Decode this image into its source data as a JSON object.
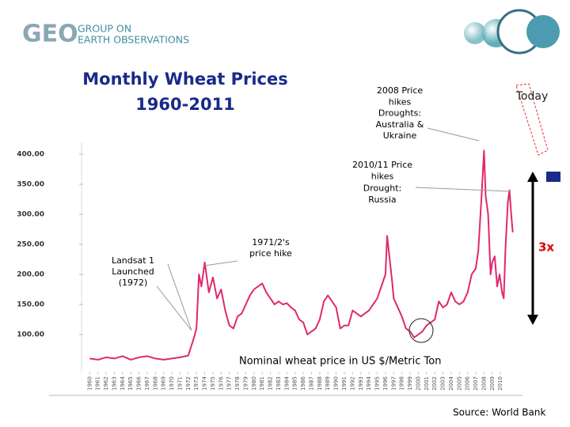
{
  "logo": {
    "mark": "GEO",
    "lines": [
      "GROUP ON",
      "EARTH OBSERVATIONS"
    ]
  },
  "chart_data": {
    "type": "line",
    "title": [
      "Monthly Wheat Prices",
      "1960-2011"
    ],
    "x": [
      1960,
      1961,
      1962,
      1963,
      1964,
      1965,
      1966,
      1967,
      1968,
      1969,
      1970,
      1971,
      1972.0,
      1972.7,
      1973.0,
      1973.3,
      1973.6,
      1974.0,
      1974.5,
      1975.0,
      1975.5,
      1976.0,
      1976.5,
      1977.0,
      1977.5,
      1978.0,
      1978.5,
      1979.0,
      1979.5,
      1980.0,
      1980.5,
      1981.0,
      1981.5,
      1982.0,
      1982.5,
      1983.0,
      1983.5,
      1984.0,
      1984.5,
      1985.0,
      1985.5,
      1986.0,
      1986.5,
      1987.0,
      1987.5,
      1988.0,
      1988.5,
      1989.0,
      1989.5,
      1990.0,
      1990.5,
      1991.0,
      1991.5,
      1992.0,
      1992.5,
      1993.0,
      1993.5,
      1994.0,
      1994.5,
      1995.0,
      1995.5,
      1996.0,
      1996.2,
      1996.8,
      1997.0,
      1997.5,
      1998.0,
      1998.5,
      1999.0,
      1999.5,
      2000.0,
      2000.5,
      2001.0,
      2001.5,
      2002.0,
      2002.5,
      2003.0,
      2003.5,
      2004.0,
      2004.5,
      2005.0,
      2005.5,
      2006.0,
      2006.5,
      2007.0,
      2007.3,
      2007.7,
      2008.0,
      2008.2,
      2008.5,
      2008.8,
      2009.0,
      2009.3,
      2009.6,
      2009.9,
      2010.2,
      2010.4,
      2010.6,
      2010.9,
      2011.1,
      2011.3,
      2011.5
    ],
    "values": [
      60,
      58,
      62,
      60,
      64,
      58,
      62,
      64,
      60,
      58,
      60,
      62,
      65,
      95,
      110,
      200,
      180,
      220,
      170,
      195,
      160,
      175,
      140,
      115,
      110,
      130,
      135,
      150,
      165,
      175,
      180,
      185,
      170,
      160,
      150,
      155,
      150,
      152,
      145,
      140,
      125,
      120,
      100,
      105,
      110,
      125,
      155,
      165,
      155,
      145,
      110,
      115,
      115,
      140,
      135,
      130,
      135,
      140,
      150,
      160,
      180,
      200,
      264,
      190,
      160,
      145,
      130,
      110,
      105,
      95,
      100,
      105,
      115,
      120,
      125,
      155,
      145,
      150,
      170,
      155,
      150,
      155,
      170,
      200,
      210,
      240,
      330,
      406,
      330,
      300,
      200,
      220,
      230,
      180,
      200,
      170,
      160,
      240,
      320,
      340,
      300,
      270
    ],
    "color": "#e0286e",
    "xlim": [
      1959.2,
      2012.2
    ],
    "ylim": [
      40,
      420
    ],
    "yticks": [
      {
        "value": 100,
        "label": "100.00"
      },
      {
        "value": 150,
        "label": "150.00"
      },
      {
        "value": 200,
        "label": "200.00"
      },
      {
        "value": 250,
        "label": "250.00"
      },
      {
        "value": 300,
        "label": "300.00"
      },
      {
        "value": 350,
        "label": "350.00"
      },
      {
        "value": 400,
        "label": "400.00"
      }
    ],
    "xticks": [
      1960,
      1961,
      1962,
      1963,
      1964,
      1965,
      1966,
      1967,
      1968,
      1969,
      1970,
      1971,
      1972,
      1973,
      1974,
      1975,
      1976,
      1977,
      1978,
      1979,
      1980,
      1981,
      1982,
      1983,
      1984,
      1985,
      1986,
      1987,
      1988,
      1989,
      1990,
      1991,
      1992,
      1993,
      1994,
      1995,
      1996,
      1997,
      1998,
      1999,
      2000,
      2001,
      2002,
      2003,
      2004,
      2005,
      2006,
      2007,
      2008,
      2009,
      2010
    ],
    "annotations": [
      {
        "lines": [
          "2008 Price",
          "hikes",
          "Droughts:",
          "Australia &",
          "Ukraine"
        ]
      },
      {
        "lines": [
          "Today"
        ]
      },
      {
        "lines": [
          "2010/11 Price",
          "hikes",
          "Drought:",
          "Russia"
        ]
      },
      {
        "lines": [
          "1971/2's",
          "price hike"
        ]
      },
      {
        "lines": [
          "Landsat 1",
          "Launched",
          "(1972)"
        ]
      },
      {
        "lines": [
          "3x"
        ]
      },
      {
        "lines": [
          "Nominal wheat price in US $/Metric Ton"
        ]
      }
    ],
    "source": "Source:  World Bank"
  }
}
